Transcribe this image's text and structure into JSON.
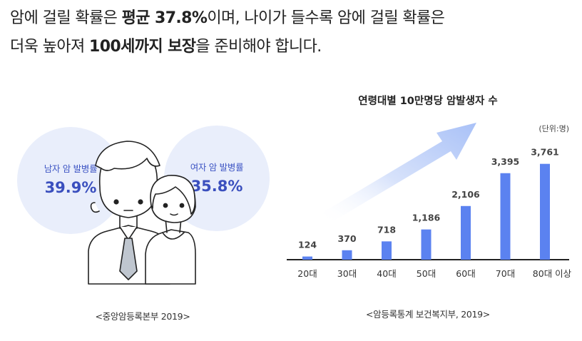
{
  "headline": {
    "line1_a": "암에 걸릴 확률은 ",
    "line1_b": "평균 37.8%",
    "line1_c": "이며, 나이가 들수록 암에 걸릴 확률은",
    "line2_a": "더욱 높아져 ",
    "line2_b": "100세까지 보장",
    "line2_c": "을 준비해야 합니다."
  },
  "left_panel": {
    "male": {
      "label": "남자 암 발병률",
      "value": "39.9%"
    },
    "female": {
      "label": "여자 암 발병률",
      "value": "35.8%"
    },
    "source": "<중앙암등록본부 2019>"
  },
  "colors": {
    "bar": "#5b82f0",
    "bubble": "#e9eefb",
    "accent_text": "#3a4fbe",
    "arrow": "#a9c1f7"
  },
  "chart_data": {
    "type": "bar",
    "title": "연령대별 10만명당 암발생자 수",
    "unit": "(단위:명)",
    "categories": [
      "20대",
      "30대",
      "40대",
      "50대",
      "60대",
      "70대",
      "80대 이상"
    ],
    "values": [
      124,
      370,
      718,
      1186,
      2106,
      3395,
      3761
    ],
    "value_labels": [
      "124",
      "370",
      "718",
      "1,186",
      "2,106",
      "3,395",
      "3,761"
    ],
    "ylim": [
      0,
      4200
    ],
    "grid": false,
    "source": "<암등록통계 보건복지부, 2019>"
  }
}
